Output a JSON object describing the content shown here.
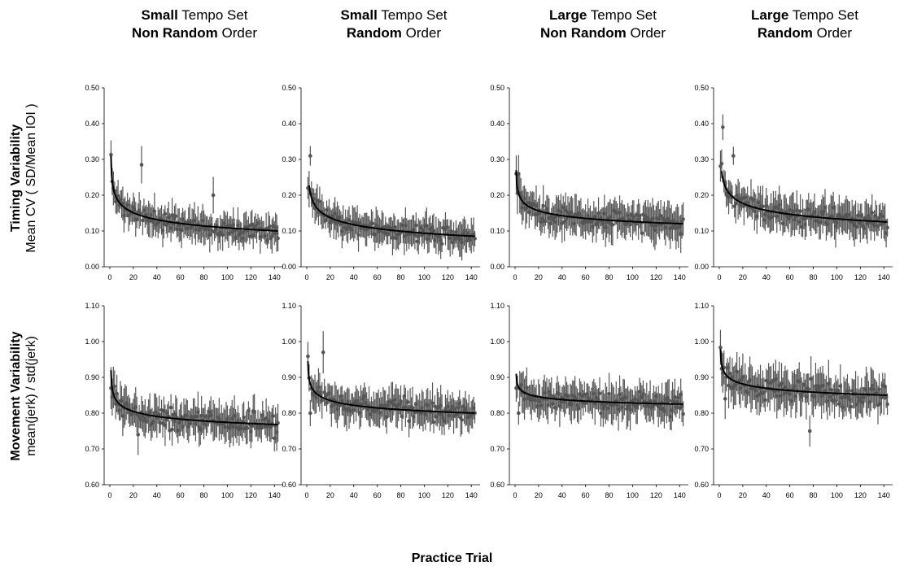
{
  "column_titles": [
    {
      "bold1": "Small",
      "rest1": " Tempo Set",
      "bold2": "Non Random",
      "rest2": " Order"
    },
    {
      "bold1": "Small",
      "rest1": " Tempo Set",
      "bold2": "Random",
      "rest2": " Order"
    },
    {
      "bold1": "Large",
      "rest1": " Tempo Set",
      "bold2": "Non Random",
      "rest2": " Order"
    },
    {
      "bold1": "Large",
      "rest1": " Tempo Set",
      "bold2": "Random",
      "rest2": " Order"
    }
  ],
  "row_labels": [
    {
      "bold": "Timing Variability",
      "normal": "Mean CV ( SD/Mean IOI )"
    },
    {
      "bold": "Movement Variability",
      "normal": "mean(jerk) / std(jerk)"
    }
  ],
  "xlabel": "Practice Trial",
  "chart_data": [
    {
      "type": "scatter",
      "row": 0,
      "col": 0,
      "xlim": [
        0,
        144
      ],
      "ylim": [
        0,
        0.5
      ],
      "xticks": [
        "0",
        "20",
        "40",
        "60",
        "80",
        "100",
        "120",
        "140"
      ],
      "yticks": [
        "0.00",
        "0.10",
        "0.20",
        "0.30",
        "0.40",
        "0.50"
      ],
      "fit": {
        "a": 0.31,
        "b": 0.21,
        "peak_x": 1
      },
      "noise": 0.02,
      "err": 0.035,
      "spikes": [
        [
          27,
          0.285
        ],
        [
          88,
          0.2
        ]
      ],
      "seed": 11
    },
    {
      "type": "scatter",
      "row": 0,
      "col": 1,
      "xlim": [
        0,
        144
      ],
      "ylim": [
        0,
        0.5
      ],
      "xticks": [
        "0",
        "20",
        "40",
        "60",
        "80",
        "100",
        "120",
        "140"
      ],
      "yticks": [
        "0.00",
        "0.10",
        "0.20",
        "0.30",
        "0.40",
        "0.50"
      ],
      "fit": {
        "a": 0.3,
        "b": 0.215,
        "peak_x": 2
      },
      "noise": 0.02,
      "err": 0.035,
      "spikes": [
        [
          3,
          0.31
        ],
        [
          1,
          0.22
        ]
      ],
      "seed": 23
    },
    {
      "type": "scatter",
      "row": 0,
      "col": 2,
      "xlim": [
        0,
        144
      ],
      "ylim": [
        0,
        0.5
      ],
      "xticks": [
        "0",
        "20",
        "40",
        "60",
        "80",
        "100",
        "120",
        "140"
      ],
      "yticks": [
        "0.00",
        "0.10",
        "0.20",
        "0.30",
        "0.40",
        "0.50"
      ],
      "fit": {
        "a": 0.27,
        "b": 0.15,
        "peak_x": 1
      },
      "noise": 0.022,
      "err": 0.04,
      "spikes": [
        [
          1,
          0.26
        ],
        [
          3,
          0.26
        ]
      ],
      "seed": 37
    },
    {
      "type": "scatter",
      "row": 0,
      "col": 3,
      "xlim": [
        0,
        144
      ],
      "ylim": [
        0,
        0.5
      ],
      "xticks": [
        "0",
        "20",
        "40",
        "60",
        "80",
        "100",
        "120",
        "140"
      ],
      "yticks": [
        "0.00",
        "0.10",
        "0.20",
        "0.30",
        "0.40",
        "0.50"
      ],
      "fit": {
        "a": 0.34,
        "b": 0.215,
        "peak_x": 2
      },
      "noise": 0.024,
      "err": 0.04,
      "spikes": [
        [
          3,
          0.39
        ],
        [
          12,
          0.31
        ]
      ],
      "seed": 41
    },
    {
      "type": "scatter",
      "row": 1,
      "col": 0,
      "xlim": [
        0,
        144
      ],
      "ylim": [
        0.6,
        1.1
      ],
      "xticks": [
        "0",
        "20",
        "40",
        "60",
        "80",
        "100",
        "120",
        "140"
      ],
      "yticks": [
        "0.60",
        "0.70",
        "0.80",
        "0.90",
        "1.00",
        "1.10"
      ],
      "fit": {
        "a": 0.92,
        "b": 0.152,
        "peak_x": 1
      },
      "noise": 0.025,
      "err": 0.04,
      "spikes": [
        [
          24,
          0.74
        ],
        [
          1,
          0.87
        ]
      ],
      "seed": 53
    },
    {
      "type": "scatter",
      "row": 1,
      "col": 1,
      "xlim": [
        0,
        144
      ],
      "ylim": [
        0.6,
        1.1
      ],
      "xticks": [
        "0",
        "20",
        "40",
        "60",
        "80",
        "100",
        "120",
        "140"
      ],
      "yticks": [
        "0.60",
        "0.70",
        "0.80",
        "0.90",
        "1.00",
        "1.10"
      ],
      "fit": {
        "a": 0.945,
        "b": 0.145,
        "peak_x": 1
      },
      "noise": 0.025,
      "err": 0.04,
      "spikes": [
        [
          14,
          0.97
        ],
        [
          3,
          0.8
        ]
      ],
      "seed": 67
    },
    {
      "type": "scatter",
      "row": 1,
      "col": 2,
      "xlim": [
        0,
        144
      ],
      "ylim": [
        0.6,
        1.1
      ],
      "xticks": [
        "0",
        "20",
        "40",
        "60",
        "80",
        "100",
        "120",
        "140"
      ],
      "yticks": [
        "0.60",
        "0.70",
        "0.80",
        "0.90",
        "1.00",
        "1.10"
      ],
      "fit": {
        "a": 0.91,
        "b": 0.085,
        "peak_x": 1
      },
      "noise": 0.024,
      "err": 0.04,
      "spikes": [
        [
          3,
          0.8
        ],
        [
          1,
          0.87
        ]
      ],
      "seed": 79
    },
    {
      "type": "scatter",
      "row": 1,
      "col": 3,
      "xlim": [
        0,
        144
      ],
      "ylim": [
        0.6,
        1.1
      ],
      "xticks": [
        "0",
        "20",
        "40",
        "60",
        "80",
        "100",
        "120",
        "140"
      ],
      "yticks": [
        "0.60",
        "0.70",
        "0.80",
        "0.90",
        "1.00",
        "1.10"
      ],
      "fit": {
        "a": 0.98,
        "b": 0.13,
        "peak_x": 1
      },
      "noise": 0.028,
      "err": 0.045,
      "spikes": [
        [
          5,
          0.84
        ],
        [
          77,
          0.75
        ]
      ],
      "seed": 97
    }
  ]
}
